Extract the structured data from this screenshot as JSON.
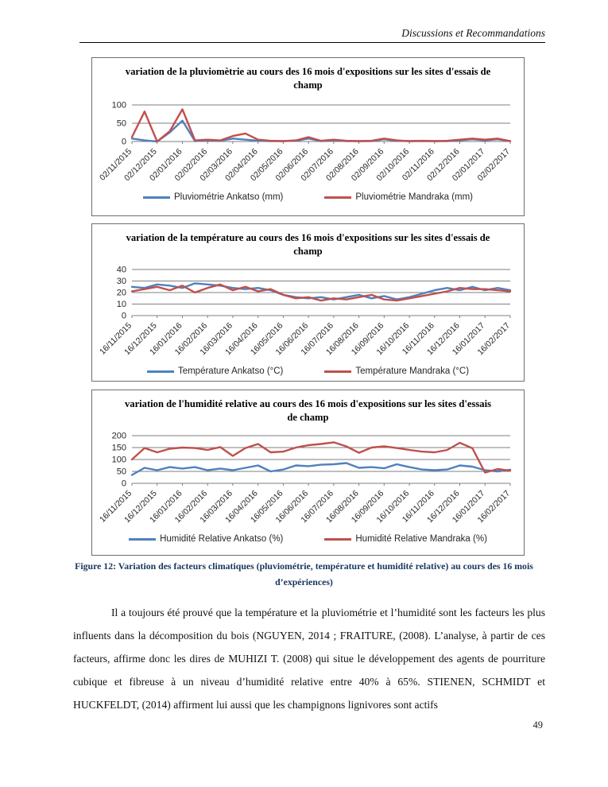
{
  "page": {
    "header": "Discussions et Recommandations",
    "caption": "Figure 12: Variation des facteurs climatiques (pluviométrie, température et humidité relative) au cours des 16 mois d’expériences)",
    "paragraph": "Il a toujours été prouvé que la température et la pluviométrie et l’humidité sont les facteurs les plus influents dans la décomposition du bois (NGUYEN, 2014 ; FRAITURE, (2008). L’analyse, à partir de ces facteurs, affirme donc les dires de MUHIZI T. (2008) qui situe le développement des agents de pourriture cubique et fibreuse à un niveau d’humidité relative entre 40% à 65%. STIENEN, SCHMIDT et HUCKFELDT, (2014) affirment lui aussi que les champignons lignivores sont actifs",
    "page_number": "49"
  },
  "colors": {
    "ankatso_blue": "#4F81BD",
    "mandraka_red": "#C0504D",
    "caption_navy": "#17365D"
  },
  "chart_data": [
    {
      "type": "line",
      "title": "variation de la pluviomètrie au cours des 16 mois d'expositions sur les sites d'essais de champ",
      "ylim": [
        0,
        100
      ],
      "yticks": [
        0,
        50,
        100
      ],
      "grid": true,
      "legend_position": "bottom",
      "label_every": 2,
      "x_labels": [
        "02/11/2015",
        "02/12/2015",
        "02/01/2016",
        "02/02/2016",
        "02/03/2016",
        "02/04/2016",
        "02/05/2016",
        "02/06/2016",
        "02/07/2016",
        "02/08/2016",
        "02/09/2016",
        "02/10/2016",
        "02/11/2016",
        "02/12/2016",
        "02/01/2017",
        "02/02/2017"
      ],
      "series": [
        {
          "name": "Pluviométrie Ankatso (mm)",
          "color": "#4F81BD",
          "values": [
            8,
            3,
            0,
            25,
            57,
            1,
            3,
            2,
            8,
            5,
            2,
            1,
            1,
            2,
            8,
            1,
            3,
            1,
            1,
            1,
            6,
            2,
            1,
            1,
            1,
            1,
            3,
            6,
            3,
            6,
            1
          ]
        },
        {
          "name": "Pluviométrie Mandraka (mm)",
          "color": "#C0504D",
          "values": [
            12,
            82,
            0,
            28,
            88,
            3,
            5,
            3,
            15,
            22,
            5,
            2,
            1,
            3,
            12,
            2,
            5,
            2,
            1,
            2,
            8,
            3,
            1,
            2,
            1,
            2,
            5,
            8,
            5,
            8,
            1
          ]
        }
      ]
    },
    {
      "type": "line",
      "title": "variation de la température au cours des 16 mois d'expositions sur les sites d'essais de champ",
      "ylim": [
        0,
        40
      ],
      "yticks": [
        0,
        10,
        20,
        30,
        40
      ],
      "grid": true,
      "legend_position": "bottom",
      "label_every": 2,
      "x_labels": [
        "16/11/2015",
        "16/12/2015",
        "16/01/2016",
        "16/02/2016",
        "16/03/2016",
        "16/04/2016",
        "16/05/2016",
        "16/06/2016",
        "16/07/2016",
        "16/08/2016",
        "16/09/2016",
        "16/10/2016",
        "16/11/2016",
        "16/12/2016",
        "16/01/2017",
        "16/02/2017"
      ],
      "series": [
        {
          "name": "Température Ankatso (°C)",
          "color": "#4F81BD",
          "values": [
            25,
            24,
            27,
            26,
            24,
            28,
            27,
            26,
            24,
            23,
            24,
            22,
            18,
            16,
            15,
            16,
            14,
            16,
            18,
            15,
            17,
            14,
            16,
            19,
            22,
            24,
            22,
            25,
            22,
            24,
            22
          ]
        },
        {
          "name": "Température Mandraka (°C)",
          "color": "#C0504D",
          "values": [
            21,
            23,
            25,
            22,
            26,
            20,
            24,
            27,
            22,
            25,
            21,
            23,
            18,
            15,
            16,
            13,
            15,
            14,
            16,
            18,
            14,
            13,
            15,
            17,
            19,
            21,
            24,
            23,
            23,
            22,
            21
          ]
        }
      ]
    },
    {
      "type": "line",
      "title": "variation de l'humidité relative au cours des 16 mois d'expositions sur les sites d'essais de champ",
      "ylim": [
        0,
        200
      ],
      "yticks": [
        0,
        50,
        100,
        150,
        200
      ],
      "grid": true,
      "legend_position": "bottom",
      "label_every": 2,
      "x_labels": [
        "16/11/2015",
        "16/12/2015",
        "16/01/2016",
        "16/02/2016",
        "16/03/2016",
        "16/04/2016",
        "16/05/2016",
        "16/06/2016",
        "16/07/2016",
        "16/08/2016",
        "16/09/2016",
        "16/10/2016",
        "16/11/2016",
        "16/12/2016",
        "16/01/2017",
        "16/02/2017"
      ],
      "series": [
        {
          "name": "Humidité Relative Ankatso (%)",
          "color": "#4F81BD",
          "values": [
            35,
            65,
            55,
            68,
            62,
            68,
            55,
            62,
            55,
            65,
            75,
            50,
            58,
            75,
            72,
            78,
            80,
            85,
            65,
            68,
            63,
            80,
            68,
            58,
            55,
            58,
            75,
            70,
            55,
            50,
            57
          ]
        },
        {
          "name": "Humidité Relative Mandraka (%)",
          "color": "#C0504D",
          "values": [
            100,
            148,
            130,
            145,
            150,
            148,
            140,
            152,
            115,
            148,
            165,
            130,
            133,
            150,
            160,
            165,
            172,
            155,
            128,
            150,
            155,
            148,
            140,
            133,
            130,
            140,
            170,
            147,
            45,
            60,
            53
          ]
        }
      ]
    }
  ]
}
